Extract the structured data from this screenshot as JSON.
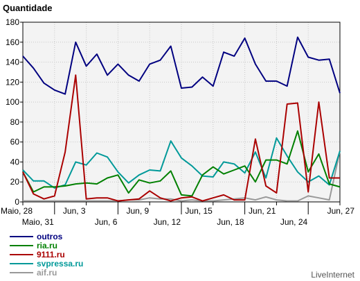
{
  "chart_data": {
    "type": "line",
    "ylabel": "Quantidade",
    "ylim": [
      0,
      180
    ],
    "yticks": [
      0,
      20,
      40,
      60,
      80,
      100,
      120,
      140,
      160,
      180
    ],
    "grid": true,
    "legend_position": "bottom-left",
    "x_count": 31,
    "x_ticks": [
      {
        "i": 0,
        "label": "Maio, 28"
      },
      {
        "i": 3,
        "label": "Maio, 31"
      },
      {
        "i": 6,
        "label": "Jun, 3"
      },
      {
        "i": 9,
        "label": "Jun, 6"
      },
      {
        "i": 12,
        "label": "Jun, 9"
      },
      {
        "i": 15,
        "label": "Jun, 12"
      },
      {
        "i": 18,
        "label": "Jun, 15"
      },
      {
        "i": 21,
        "label": "Jun, 18"
      },
      {
        "i": 24,
        "label": "Jun, 21"
      },
      {
        "i": 27,
        "label": "Jun, 24"
      },
      {
        "i": 30,
        "label": "Jun, 27"
      }
    ],
    "series": [
      {
        "name": "outros",
        "color": "#000080",
        "values": [
          146,
          134,
          119,
          112,
          108,
          160,
          136,
          148,
          127,
          138,
          127,
          121,
          138,
          142,
          156,
          114,
          115,
          125,
          116,
          150,
          146,
          164,
          138,
          121,
          121,
          116,
          165,
          145,
          142,
          143,
          109
        ]
      },
      {
        "name": "ria.ru",
        "color": "#008000",
        "values": [
          30,
          10,
          15,
          15,
          16,
          18,
          19,
          18,
          24,
          27,
          9,
          22,
          19,
          21,
          31,
          7,
          6,
          27,
          35,
          28,
          32,
          36,
          20,
          42,
          42,
          38,
          71,
          30,
          48,
          18,
          15
        ]
      },
      {
        "name": "9111.ru",
        "color": "#aa0000",
        "values": [
          30,
          8,
          3,
          6,
          50,
          127,
          3,
          4,
          4,
          1,
          2,
          3,
          11,
          4,
          1,
          4,
          5,
          1,
          4,
          7,
          2,
          2,
          63,
          16,
          9,
          98,
          99,
          10,
          100,
          24,
          24
        ]
      },
      {
        "name": "svpressa.ru",
        "color": "#009999",
        "values": [
          32,
          21,
          21,
          14,
          17,
          40,
          37,
          49,
          45,
          30,
          19,
          27,
          32,
          31,
          61,
          44,
          36,
          26,
          25,
          40,
          38,
          29,
          50,
          24,
          64,
          46,
          30,
          20,
          26,
          17,
          51
        ]
      },
      {
        "name": "aif.ru",
        "color": "#999999",
        "values": [
          1,
          1,
          1,
          1,
          1,
          1,
          1,
          1,
          1,
          1,
          2,
          2,
          4,
          3,
          3,
          1,
          2,
          1,
          1,
          2,
          3,
          4,
          2,
          5,
          2,
          1,
          1,
          6,
          4,
          2,
          51
        ]
      }
    ]
  },
  "watermark": "LiveInternet"
}
